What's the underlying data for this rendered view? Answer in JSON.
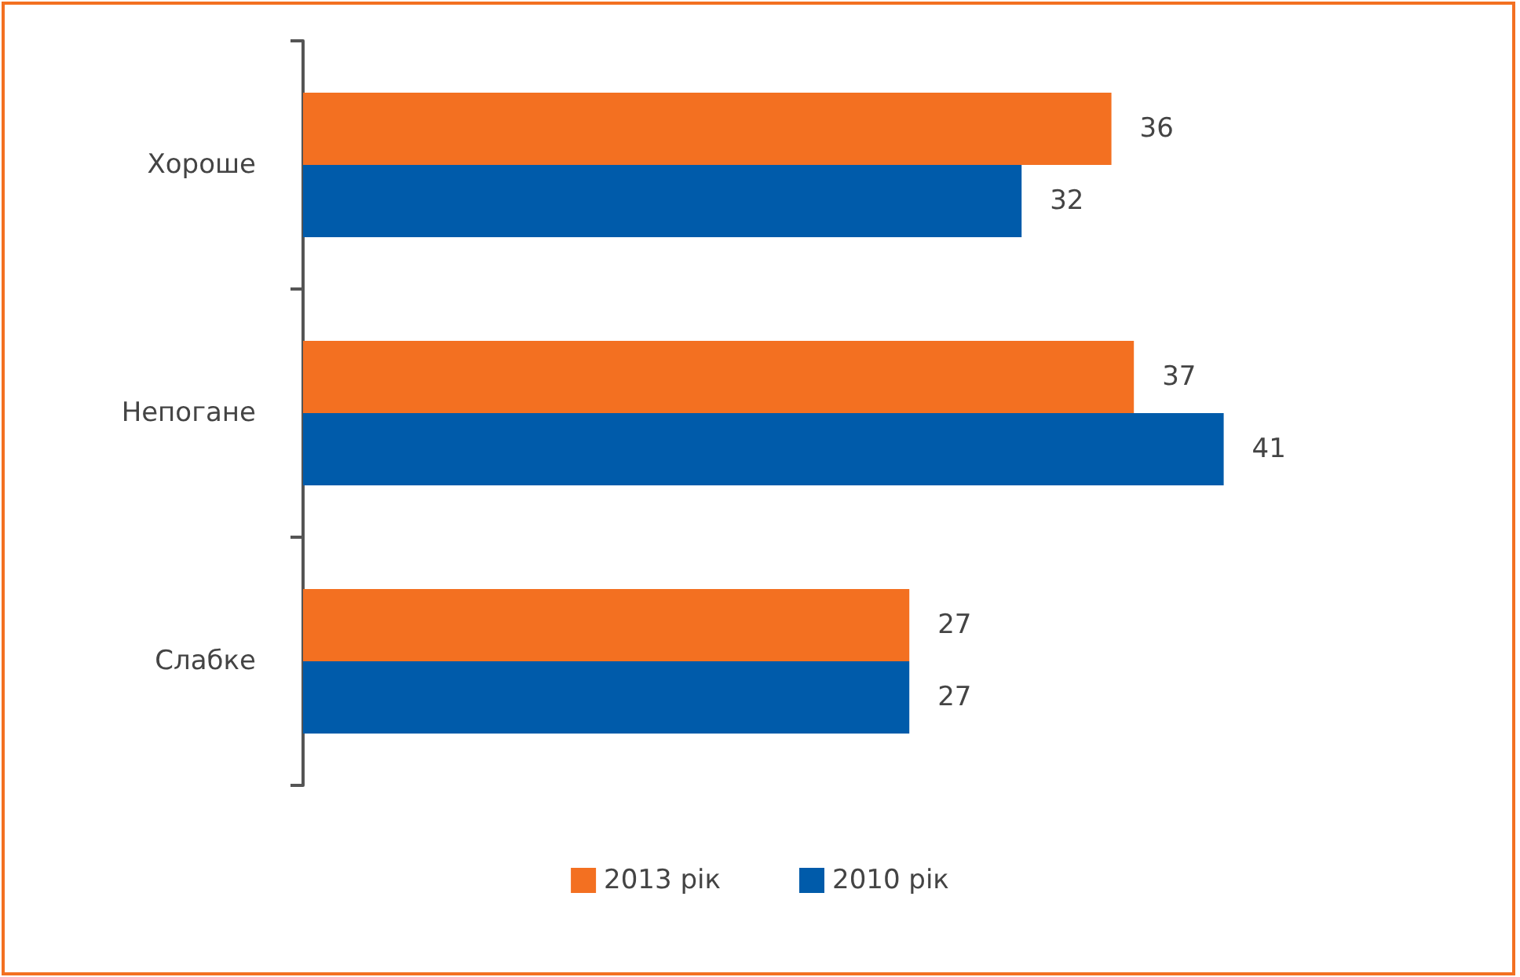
{
  "chart_data": {
    "type": "bar",
    "orientation": "horizontal",
    "categories": [
      "Хороше",
      "Непогане",
      "Слабке"
    ],
    "series": [
      {
        "name": "2013 рік",
        "color": "#f37021",
        "values": [
          36,
          37,
          27
        ]
      },
      {
        "name": "2010 рік",
        "color": "#005baa",
        "values": [
          32,
          41,
          27
        ]
      }
    ],
    "data_labels": true,
    "legend": "bottom"
  }
}
